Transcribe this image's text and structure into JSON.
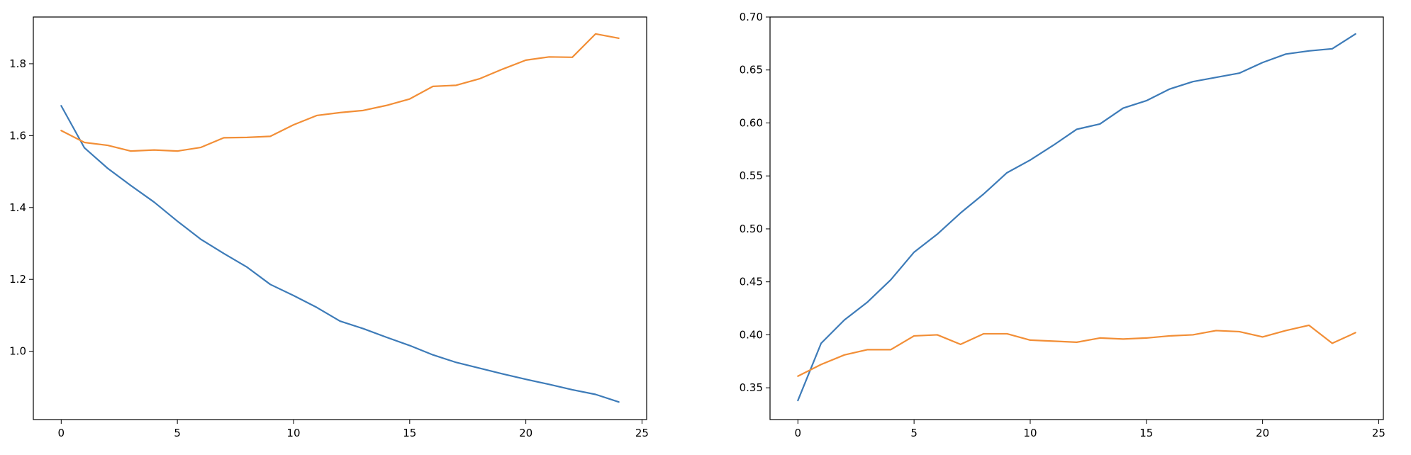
{
  "chart_data": [
    {
      "type": "line",
      "title": "",
      "xlabel": "",
      "ylabel": "",
      "xlim": [
        -1.2,
        25.2
      ],
      "ylim": [
        0.81,
        1.93
      ],
      "grid": false,
      "x_ticks": [
        0,
        5,
        10,
        15,
        20,
        25
      ],
      "x_tick_labels": [
        "0",
        "5",
        "10",
        "15",
        "20",
        "25"
      ],
      "y_ticks": [
        1.0,
        1.2,
        1.4,
        1.6,
        1.8
      ],
      "y_tick_labels": [
        "1.0",
        "1.2",
        "1.4",
        "1.6",
        "1.8"
      ],
      "x": [
        0,
        1,
        2,
        3,
        4,
        5,
        6,
        7,
        8,
        9,
        10,
        11,
        12,
        13,
        14,
        15,
        16,
        17,
        18,
        19,
        20,
        21,
        22,
        23,
        24
      ],
      "series": [
        {
          "color": "#3d7bb8",
          "values": [
            1.683,
            1.566,
            1.509,
            1.461,
            1.415,
            1.362,
            1.312,
            1.272,
            1.234,
            1.186,
            1.155,
            1.122,
            1.084,
            1.063,
            1.039,
            1.016,
            0.99,
            0.969,
            0.953,
            0.937,
            0.922,
            0.908,
            0.893,
            0.88,
            0.859
          ]
        },
        {
          "color": "#f28e36",
          "values": [
            1.614,
            1.581,
            1.573,
            1.557,
            1.56,
            1.557,
            1.567,
            1.594,
            1.595,
            1.598,
            1.63,
            1.656,
            1.664,
            1.67,
            1.684,
            1.702,
            1.737,
            1.74,
            1.758,
            1.785,
            1.81,
            1.819,
            1.818,
            1.883,
            1.871
          ]
        }
      ]
    },
    {
      "type": "line",
      "title": "",
      "xlabel": "",
      "ylabel": "",
      "xlim": [
        -1.2,
        25.2
      ],
      "ylim": [
        0.32,
        0.7
      ],
      "grid": false,
      "x_ticks": [
        0,
        5,
        10,
        15,
        20,
        25
      ],
      "x_tick_labels": [
        "0",
        "5",
        "10",
        "15",
        "20",
        "25"
      ],
      "y_ticks": [
        0.35,
        0.4,
        0.45,
        0.5,
        0.55,
        0.6,
        0.65,
        0.7
      ],
      "y_tick_labels": [
        "0.35",
        "0.40",
        "0.45",
        "0.50",
        "0.55",
        "0.60",
        "0.65",
        "0.70"
      ],
      "x": [
        0,
        1,
        2,
        3,
        4,
        5,
        6,
        7,
        8,
        9,
        10,
        11,
        12,
        13,
        14,
        15,
        16,
        17,
        18,
        19,
        20,
        21,
        22,
        23,
        24
      ],
      "series": [
        {
          "color": "#3d7bb8",
          "values": [
            0.338,
            0.392,
            0.414,
            0.431,
            0.452,
            0.478,
            0.495,
            0.515,
            0.533,
            0.553,
            0.565,
            0.579,
            0.594,
            0.599,
            0.614,
            0.621,
            0.632,
            0.639,
            0.643,
            0.647,
            0.657,
            0.665,
            0.668,
            0.67,
            0.684
          ]
        },
        {
          "color": "#f28e36",
          "values": [
            0.361,
            0.372,
            0.381,
            0.386,
            0.386,
            0.399,
            0.4,
            0.391,
            0.401,
            0.401,
            0.395,
            0.394,
            0.393,
            0.397,
            0.396,
            0.397,
            0.399,
            0.4,
            0.404,
            0.403,
            0.398,
            0.404,
            0.409,
            0.392,
            0.402
          ]
        }
      ]
    }
  ]
}
